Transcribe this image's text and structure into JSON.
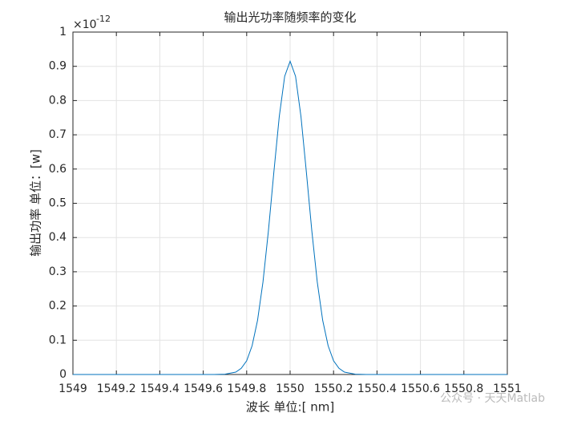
{
  "chart_data": {
    "type": "line",
    "title": "输出光功率随频率的变化",
    "x_label": "波长 单位:[ nm]",
    "y_label": "输出功率 单位：[w]",
    "y_exponent_base": "×10",
    "y_exponent": "-12",
    "watermark": "公众号 · 天天Matlab",
    "x": [
      1549,
      1549.5,
      1549.65,
      1549.7,
      1549.75,
      1549.775,
      1549.8,
      1549.825,
      1549.85,
      1549.875,
      1549.9,
      1549.925,
      1549.95,
      1549.975,
      1550,
      1550.025,
      1550.05,
      1550.075,
      1550.1,
      1550.125,
      1550.15,
      1550.175,
      1550.2,
      1550.225,
      1550.25,
      1550.3,
      1550.35,
      1550.5,
      1551
    ],
    "series": [
      {
        "color": "#0072bd",
        "values": [
          0,
          0,
          0,
          0.001,
          0.007,
          0.018,
          0.04,
          0.084,
          0.158,
          0.27,
          0.419,
          0.59,
          0.753,
          0.871,
          0.915,
          0.871,
          0.753,
          0.59,
          0.419,
          0.27,
          0.158,
          0.084,
          0.04,
          0.018,
          0.007,
          0.001,
          0,
          0,
          0
        ]
      }
    ],
    "xlim": [
      1549,
      1551
    ],
    "xticks": [
      1549,
      1549.2,
      1549.4,
      1549.6,
      1549.8,
      1550,
      1550.2,
      1550.4,
      1550.6,
      1550.8,
      1551
    ],
    "ylim": [
      0,
      1
    ],
    "yticks": [
      0,
      0.1,
      0.2,
      0.3,
      0.4,
      0.5,
      0.6,
      0.7,
      0.8,
      0.9,
      1
    ],
    "grid": true
  }
}
